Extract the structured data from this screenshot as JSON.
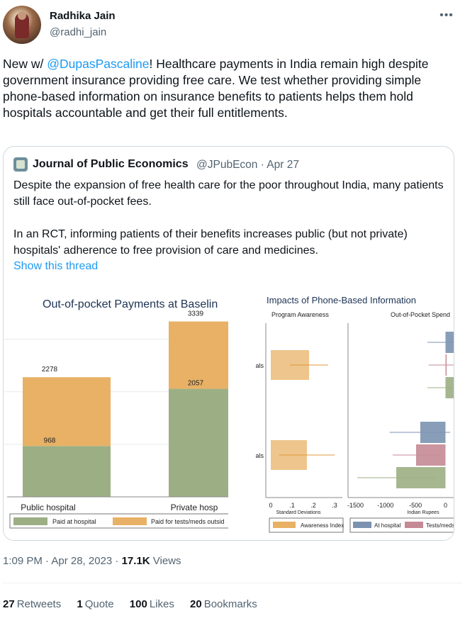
{
  "author": {
    "display_name": "Radhika Jain",
    "handle": "@radhi_jain",
    "more_icon": "ellipsis-icon"
  },
  "tweet": {
    "prefix": "New w/ ",
    "mention": "@DupasPascaline",
    "body": "! Healthcare payments in India remain high despite government insurance providing free care. We test whether providing simple phone-based information on insurance benefits to patients helps them hold hospitals accountable and get their full entitlements."
  },
  "quote": {
    "name": "Journal of Public Economics",
    "meta": "@JPubEcon · Apr 27",
    "para1": "Despite the expansion of free health care for the poor   throughout India, many patients still face out-of-pocket fees.",
    "para2": "In an RCT, informing patients of their benefits increases public (but not private) hospitals' adherence to free provision of care and medicines.",
    "show_thread": "Show this thread"
  },
  "chart_data": [
    {
      "type": "bar",
      "title": "Out-of-pocket Payments at Baselin",
      "categories": [
        "Public hospital",
        "Private hosp"
      ],
      "series": [
        {
          "name": "Paid at hospital",
          "values": [
            968,
            2057
          ],
          "color": "#9caf84"
        },
        {
          "name": "Paid for tests/meds outsid",
          "values": [
            1310,
            1282
          ],
          "color": "#e8b165"
        }
      ],
      "totals": [
        2278,
        3339
      ],
      "segment_labels": [
        "968",
        "2057"
      ],
      "total_labels": [
        "2278",
        "3339"
      ],
      "ylim": [
        0,
        3900
      ],
      "grid": true,
      "legend": "bottom"
    },
    {
      "type": "bar",
      "title": "Impacts of Phone-Based Information",
      "panels": [
        {
          "title": "Program Awareness",
          "xlabel": "Standard Deviations",
          "xticks": [
            "0",
            ".1",
            ".2",
            ".3"
          ],
          "xtick_values": [
            0,
            0.1,
            0.2,
            0.3
          ],
          "xlim": [
            -0.01,
            0.33
          ],
          "categories": [
            "Hospitals",
            "Hospitals"
          ],
          "series": [
            {
              "name": "Awareness Index",
              "color": "#e8b165",
              "values": [
                0.18,
                0.17
              ],
              "ci_low": [
                0.09,
                0.04
              ],
              "ci_high": [
                0.27,
                0.3
              ]
            }
          ]
        },
        {
          "title": "Out-of-Pocket Spend",
          "xlabel": "Indian Rupees",
          "xticks": [
            "-1500",
            "-1000",
            "-500",
            "0"
          ],
          "xtick_values": [
            -1500,
            -1000,
            -500,
            0
          ],
          "xlim": [
            -1600,
            160
          ],
          "series": [
            {
              "name": "At hospital",
              "color": "#7b93b0",
              "values": [
                150,
                -420
              ],
              "ci_low": [
                -300,
                -930
              ],
              "ci_high": [
                500,
                80
              ]
            },
            {
              "name": "Tests/meds o",
              "color": "#c48a95",
              "values": [
                20,
                -490
              ],
              "ci_low": [
                -280,
                -880
              ],
              "ci_high": [
                240,
                -80
              ]
            },
            {
              "name": "",
              "color": "#9caf84",
              "values": [
                230,
                -820
              ],
              "ci_low": [
                -300,
                -1470
              ],
              "ci_high": [
                520,
                -170
              ]
            }
          ]
        }
      ]
    }
  ],
  "footer": {
    "time": "1:09 PM · Apr 28, 2023 · ",
    "views_count": "17.1K",
    "views_label": " Views"
  },
  "stats": [
    {
      "count": "27",
      "label": "Retweets"
    },
    {
      "count": "1",
      "label": "Quote"
    },
    {
      "count": "100",
      "label": "Likes"
    },
    {
      "count": "20",
      "label": "Bookmarks"
    }
  ]
}
